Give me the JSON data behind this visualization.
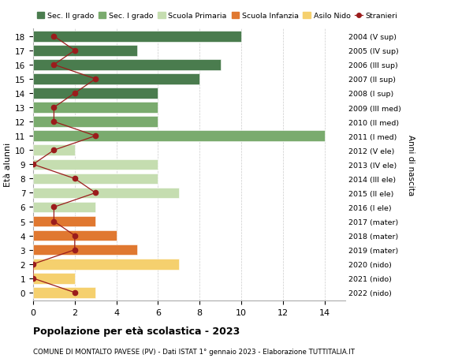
{
  "ages": [
    18,
    17,
    16,
    15,
    14,
    13,
    12,
    11,
    10,
    9,
    8,
    7,
    6,
    5,
    4,
    3,
    2,
    1,
    0
  ],
  "years": [
    "2004 (V sup)",
    "2005 (IV sup)",
    "2006 (III sup)",
    "2007 (II sup)",
    "2008 (I sup)",
    "2009 (III med)",
    "2010 (II med)",
    "2011 (I med)",
    "2012 (V ele)",
    "2013 (IV ele)",
    "2014 (III ele)",
    "2015 (II ele)",
    "2016 (I ele)",
    "2017 (mater)",
    "2018 (mater)",
    "2019 (mater)",
    "2020 (nido)",
    "2021 (nido)",
    "2022 (nido)"
  ],
  "bar_values": [
    10,
    5,
    9,
    8,
    6,
    6,
    6,
    14,
    2,
    6,
    6,
    7,
    3,
    3,
    4,
    5,
    7,
    2,
    3
  ],
  "stranieri": [
    1,
    2,
    1,
    3,
    2,
    1,
    1,
    3,
    1,
    0,
    2,
    3,
    1,
    1,
    2,
    2,
    0,
    0,
    2
  ],
  "bar_colors": [
    "#4a7c4e",
    "#4a7c4e",
    "#4a7c4e",
    "#4a7c4e",
    "#4a7c4e",
    "#7aab6e",
    "#7aab6e",
    "#7aab6e",
    "#c5ddb0",
    "#c5ddb0",
    "#c5ddb0",
    "#c5ddb0",
    "#c5ddb0",
    "#e07830",
    "#e07830",
    "#e07830",
    "#f5d06e",
    "#f5d06e",
    "#f5d06e"
  ],
  "title": "Popolazione per età scolastica - 2023",
  "subtitle": "COMUNE DI MONTALTO PAVESE (PV) - Dati ISTAT 1° gennaio 2023 - Elaborazione TUTTITALIA.IT",
  "ylabel_left": "Età alunni",
  "ylabel_right": "Anni di nascita",
  "xlim": [
    0,
    15
  ],
  "xticks": [
    0,
    2,
    4,
    6,
    8,
    10,
    12,
    14
  ],
  "background_color": "#ffffff",
  "grid_color": "#cccccc",
  "legend_labels": [
    "Sec. II grado",
    "Sec. I grado",
    "Scuola Primaria",
    "Scuola Infanzia",
    "Asilo Nido",
    "Stranieri"
  ],
  "legend_colors": [
    "#4a7c4e",
    "#7aab6e",
    "#c5ddb0",
    "#e07830",
    "#f5d06e",
    "#9b1c1c"
  ],
  "stranieri_color": "#9b1c1c"
}
